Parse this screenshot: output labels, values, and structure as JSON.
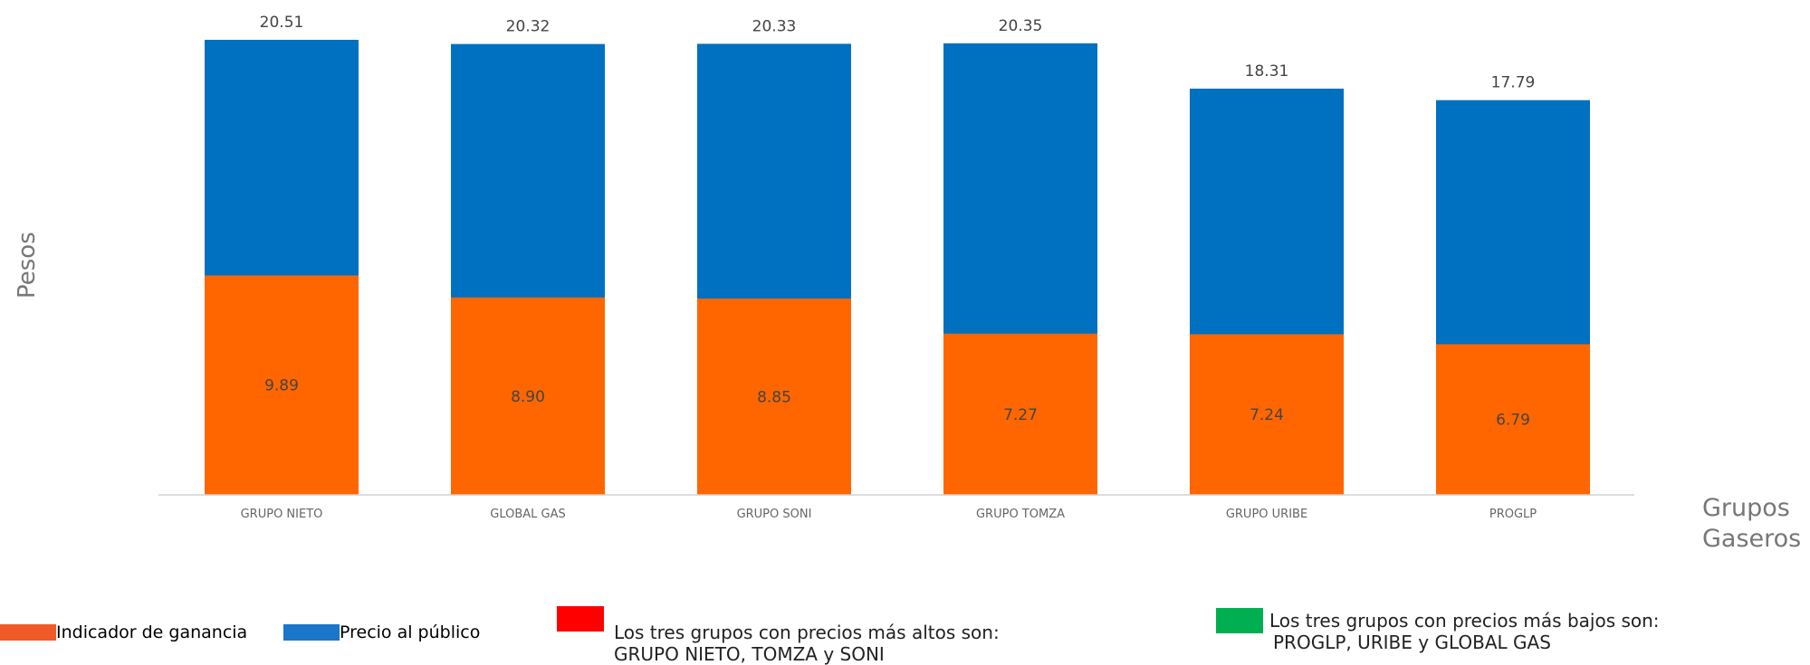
{
  "chart_data": {
    "type": "bar",
    "stacked": false,
    "overlapping": true,
    "categories": [
      "GRUPO NIETO",
      "GLOBAL GAS",
      "GRUPO SONI",
      "GRUPO TOMZA",
      "GRUPO URIBE",
      "PROGLP"
    ],
    "series": [
      {
        "name": "Precio al público",
        "values": [
          20.51,
          20.32,
          20.33,
          20.35,
          18.31,
          17.79
        ],
        "color": "#0070C0",
        "labels": [
          "20.51",
          "20.32",
          "20.33",
          "20.35",
          "18.31",
          "17.79"
        ]
      },
      {
        "name": "Indicador de ganancia",
        "values": [
          9.89,
          8.9,
          8.85,
          7.27,
          7.24,
          6.79
        ],
        "color": "#FF6600",
        "labels": [
          "9.89",
          "8.90",
          "8.85",
          "7.27",
          "7.24",
          "6.79"
        ]
      }
    ],
    "xlabel": "Grupos Gaseros",
    "xlabel_lines": [
      "Grupos",
      "Gaseros"
    ],
    "ylabel": "Pesos",
    "ylim": [
      0,
      20.51
    ],
    "grid": false
  },
  "legend": {
    "items": [
      {
        "label": "Indicador de ganancia",
        "color": "#F05A28"
      },
      {
        "label": "Precio al público",
        "color": "#1B75C8"
      }
    ]
  },
  "notes": {
    "high": {
      "color": "#FF0000",
      "line1": "Los tres grupos con precios más altos son:",
      "line2": "GRUPO NIETO, TOMZA y SONI"
    },
    "low": {
      "color": "#00B050",
      "line1": "Los tres grupos con precios más bajos son:",
      "line2": "PROGLP, URIBE y GLOBAL GAS"
    }
  }
}
